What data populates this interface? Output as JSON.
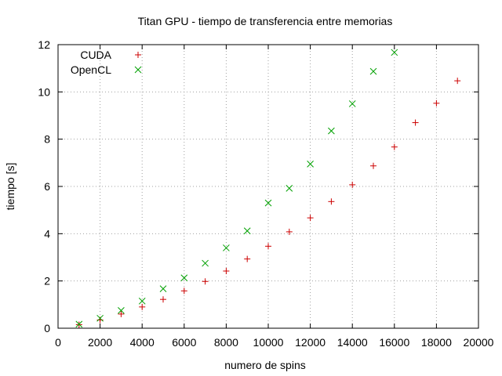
{
  "chart_data": {
    "type": "scatter",
    "title": "Titan GPU - tiempo de transferencia entre memorias",
    "xlabel": "numero de spins",
    "ylabel": "tiempo [s]",
    "xlim": [
      0,
      20000
    ],
    "ylim": [
      0,
      12
    ],
    "xticks": [
      0,
      2000,
      4000,
      6000,
      8000,
      10000,
      12000,
      14000,
      16000,
      18000,
      20000
    ],
    "yticks": [
      0,
      2,
      4,
      6,
      8,
      10,
      12
    ],
    "grid": true,
    "legend_position": "top-left",
    "series": [
      {
        "name": "CUDA",
        "marker": "plus",
        "color": "#cc0000",
        "x": [
          1000,
          2000,
          3000,
          4000,
          5000,
          6000,
          7000,
          8000,
          9000,
          10000,
          11000,
          12000,
          13000,
          14000,
          15000,
          16000,
          17000,
          18000,
          19000
        ],
        "y": [
          0.15,
          0.35,
          0.6,
          0.9,
          1.22,
          1.58,
          1.98,
          2.42,
          2.93,
          3.47,
          4.08,
          4.67,
          5.36,
          6.07,
          6.87,
          7.67,
          8.7,
          9.52,
          10.47
        ]
      },
      {
        "name": "OpenCL",
        "marker": "cross",
        "color": "#00a000",
        "x": [
          1000,
          2000,
          3000,
          4000,
          5000,
          6000,
          7000,
          8000,
          9000,
          10000,
          11000,
          12000,
          13000,
          14000,
          15000,
          16000
        ],
        "y": [
          0.17,
          0.42,
          0.75,
          1.15,
          1.67,
          2.13,
          2.75,
          3.4,
          4.12,
          5.3,
          5.92,
          6.95,
          8.35,
          9.5,
          10.87,
          11.67
        ]
      }
    ]
  }
}
